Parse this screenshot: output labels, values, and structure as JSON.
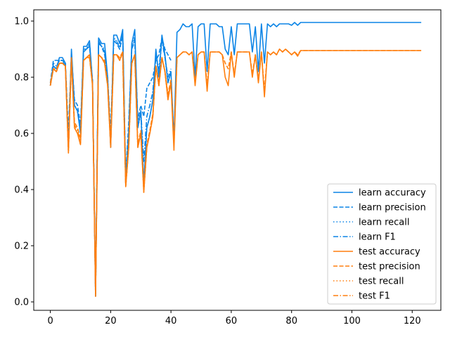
{
  "chart_data": {
    "type": "line",
    "title": "",
    "xlabel": "",
    "ylabel": "",
    "xlim": [
      -5.5,
      129.5
    ],
    "ylim": [
      -0.03,
      1.04
    ],
    "xticks": [
      0,
      20,
      40,
      60,
      80,
      100,
      120
    ],
    "yticks": [
      0.0,
      0.2,
      0.4,
      0.6,
      0.8,
      1.0
    ],
    "xtick_labels": [
      "0",
      "20",
      "40",
      "60",
      "80",
      "100",
      "120"
    ],
    "ytick_labels": [
      "0.0",
      "0.2",
      "0.4",
      "0.6",
      "0.8",
      "1.0"
    ],
    "grid": false,
    "legend_position": "lower-right",
    "colors": {
      "learn": "#1f77b4",
      "learn_bright": "#0a84e6",
      "test": "#ff7f0e"
    },
    "series": [
      {
        "name": "learn accuracy",
        "color": "#0a84e6",
        "style": "solid",
        "x": [
          0,
          1,
          2,
          3,
          4,
          5,
          6,
          7,
          8,
          9,
          10,
          11,
          12,
          13,
          14,
          15,
          16,
          17,
          18,
          19,
          20,
          21,
          22,
          23,
          24,
          25,
          26,
          27,
          28,
          29,
          30,
          31,
          32,
          33,
          34,
          35,
          36,
          37,
          38,
          39,
          40,
          41,
          42,
          43,
          44,
          45,
          46,
          47,
          48,
          49,
          50,
          51,
          52,
          53,
          54,
          55,
          56,
          57,
          58,
          59,
          60,
          61,
          62,
          63,
          64,
          65,
          66,
          67,
          68,
          69,
          70,
          71,
          72,
          73,
          74,
          75,
          76,
          77,
          78,
          79,
          80,
          81,
          82,
          83,
          85,
          90,
          95,
          100,
          110,
          120,
          123
        ],
        "y": [
          0.77,
          0.84,
          0.83,
          0.87,
          0.87,
          0.85,
          0.55,
          0.9,
          0.7,
          0.68,
          0.6,
          0.91,
          0.91,
          0.93,
          0.78,
          0.02,
          0.94,
          0.92,
          0.92,
          0.8,
          0.55,
          0.95,
          0.95,
          0.92,
          0.97,
          0.42,
          0.6,
          0.92,
          0.97,
          0.62,
          0.68,
          0.42,
          0.62,
          0.66,
          0.72,
          0.9,
          0.8,
          0.95,
          0.88,
          0.78,
          0.82,
          0.58,
          0.96,
          0.97,
          0.99,
          0.98,
          0.98,
          0.99,
          0.8,
          0.98,
          0.99,
          0.99,
          0.82,
          0.99,
          0.99,
          0.99,
          0.98,
          0.98,
          0.9,
          0.88,
          0.98,
          0.88,
          0.99,
          0.99,
          0.99,
          0.99,
          0.99,
          0.89,
          0.98,
          0.82,
          0.99,
          0.85,
          0.99,
          0.98,
          0.99,
          0.98,
          0.99,
          0.99,
          0.99,
          0.99,
          0.985,
          0.995,
          0.985,
          0.995,
          0.995,
          0.995,
          0.995,
          0.995,
          0.995,
          0.995,
          0.995
        ]
      },
      {
        "name": "learn precision",
        "color": "#0a84e6",
        "style": "dashed",
        "x": [
          0,
          1,
          2,
          3,
          4,
          5,
          6,
          7,
          8,
          9,
          10,
          11,
          12,
          13,
          14,
          15,
          16,
          17,
          18,
          19,
          20,
          21,
          22,
          23,
          24,
          25,
          26,
          27,
          28,
          29,
          30,
          31,
          32,
          33,
          34,
          35,
          36,
          37,
          38,
          39,
          40
        ],
        "y": [
          0.78,
          0.86,
          0.86,
          0.86,
          0.86,
          0.85,
          0.6,
          0.88,
          0.72,
          0.7,
          0.63,
          0.89,
          0.9,
          0.91,
          0.79,
          0.05,
          0.92,
          0.91,
          0.88,
          0.8,
          0.6,
          0.93,
          0.92,
          0.9,
          0.95,
          0.45,
          0.64,
          0.9,
          0.93,
          0.65,
          0.7,
          0.66,
          0.76,
          0.78,
          0.8,
          0.86,
          0.88,
          0.94,
          0.9,
          0.88,
          0.86
        ]
      },
      {
        "name": "learn recall",
        "color": "#0a84e6",
        "style": "dotted",
        "x": [
          0,
          1,
          2,
          3,
          4,
          5,
          6,
          7,
          8,
          9,
          10,
          11,
          12,
          13,
          14,
          15,
          16,
          17,
          18,
          19,
          20,
          21,
          22,
          23,
          24,
          25,
          26,
          27,
          28,
          29,
          30,
          31,
          32,
          33,
          34,
          35,
          36,
          37,
          38,
          39,
          40
        ],
        "y": [
          0.77,
          0.84,
          0.83,
          0.86,
          0.86,
          0.84,
          0.55,
          0.88,
          0.7,
          0.68,
          0.6,
          0.9,
          0.9,
          0.92,
          0.78,
          0.02,
          0.93,
          0.91,
          0.9,
          0.79,
          0.56,
          0.94,
          0.93,
          0.91,
          0.96,
          0.43,
          0.6,
          0.91,
          0.95,
          0.62,
          0.67,
          0.43,
          0.62,
          0.66,
          0.72,
          0.89,
          0.8,
          0.94,
          0.87,
          0.78,
          0.82
        ]
      },
      {
        "name": "learn F1",
        "color": "#0a84e6",
        "style": "dashdot",
        "x": [
          0,
          1,
          2,
          3,
          4,
          5,
          6,
          7,
          8,
          9,
          10,
          11,
          12,
          13,
          14,
          15,
          16,
          17,
          18,
          19,
          20,
          21,
          22,
          23,
          24,
          25,
          26,
          27,
          28,
          29,
          30,
          31,
          32,
          33,
          34,
          35,
          36,
          37,
          38,
          39,
          40
        ],
        "y": [
          0.77,
          0.85,
          0.84,
          0.86,
          0.86,
          0.84,
          0.56,
          0.88,
          0.7,
          0.68,
          0.61,
          0.9,
          0.9,
          0.92,
          0.78,
          0.03,
          0.93,
          0.91,
          0.89,
          0.79,
          0.57,
          0.93,
          0.93,
          0.9,
          0.95,
          0.44,
          0.61,
          0.9,
          0.94,
          0.63,
          0.68,
          0.5,
          0.66,
          0.7,
          0.75,
          0.88,
          0.83,
          0.93,
          0.87,
          0.8,
          0.83
        ]
      },
      {
        "name": "test accuracy",
        "color": "#ff7f0e",
        "style": "solid",
        "x": [
          0,
          1,
          2,
          3,
          4,
          5,
          6,
          7,
          8,
          9,
          10,
          11,
          12,
          13,
          14,
          15,
          16,
          17,
          18,
          19,
          20,
          21,
          22,
          23,
          24,
          25,
          26,
          27,
          28,
          29,
          30,
          31,
          32,
          33,
          34,
          35,
          36,
          37,
          38,
          39,
          40,
          41,
          42,
          43,
          44,
          45,
          46,
          47,
          48,
          49,
          50,
          51,
          52,
          53,
          54,
          55,
          56,
          57,
          58,
          59,
          60,
          61,
          62,
          63,
          64,
          65,
          66,
          67,
          68,
          69,
          70,
          71,
          72,
          73,
          74,
          75,
          76,
          77,
          78,
          79,
          80,
          81,
          82,
          83,
          85,
          90,
          95,
          100,
          110,
          120,
          123
        ],
        "y": [
          0.77,
          0.83,
          0.82,
          0.85,
          0.85,
          0.84,
          0.53,
          0.87,
          0.62,
          0.6,
          0.56,
          0.86,
          0.87,
          0.88,
          0.77,
          0.02,
          0.88,
          0.87,
          0.85,
          0.77,
          0.55,
          0.88,
          0.88,
          0.86,
          0.89,
          0.41,
          0.55,
          0.85,
          0.88,
          0.55,
          0.6,
          0.39,
          0.55,
          0.6,
          0.66,
          0.84,
          0.77,
          0.87,
          0.82,
          0.72,
          0.78,
          0.54,
          0.87,
          0.88,
          0.89,
          0.89,
          0.88,
          0.89,
          0.77,
          0.88,
          0.89,
          0.89,
          0.75,
          0.89,
          0.89,
          0.89,
          0.89,
          0.88,
          0.8,
          0.77,
          0.89,
          0.8,
          0.89,
          0.89,
          0.89,
          0.89,
          0.89,
          0.8,
          0.88,
          0.78,
          0.89,
          0.73,
          0.89,
          0.88,
          0.89,
          0.88,
          0.9,
          0.89,
          0.9,
          0.89,
          0.88,
          0.89,
          0.875,
          0.895,
          0.895,
          0.895,
          0.895,
          0.895,
          0.895,
          0.895,
          0.895
        ]
      },
      {
        "name": "test precision",
        "color": "#ff7f0e",
        "style": "dashed",
        "x": [
          0,
          1,
          2,
          3,
          4,
          5,
          6,
          7,
          8,
          9,
          10,
          11,
          12,
          13,
          14,
          15,
          16,
          17,
          18,
          19,
          20,
          21,
          22,
          23,
          24,
          25,
          26,
          27,
          28,
          29,
          30,
          31,
          32,
          33,
          34,
          35,
          36,
          37,
          38,
          39,
          40,
          41,
          42,
          43,
          44,
          45,
          46,
          47,
          48,
          49,
          50,
          51,
          52,
          53,
          54,
          55,
          56,
          57,
          58,
          59,
          60,
          61,
          62,
          63,
          64,
          65,
          66,
          67,
          68,
          69,
          70,
          71,
          72,
          73,
          74,
          75,
          76,
          77,
          78,
          79,
          80,
          81,
          82,
          83,
          85,
          90,
          95,
          100,
          110,
          120,
          123
        ],
        "y": [
          0.78,
          0.83,
          0.83,
          0.85,
          0.85,
          0.84,
          0.55,
          0.86,
          0.64,
          0.62,
          0.58,
          0.86,
          0.87,
          0.87,
          0.78,
          0.04,
          0.88,
          0.87,
          0.86,
          0.78,
          0.57,
          0.88,
          0.88,
          0.87,
          0.89,
          0.42,
          0.56,
          0.85,
          0.88,
          0.56,
          0.61,
          0.41,
          0.56,
          0.61,
          0.67,
          0.84,
          0.78,
          0.87,
          0.82,
          0.74,
          0.79,
          0.56,
          0.87,
          0.88,
          0.89,
          0.89,
          0.88,
          0.89,
          0.78,
          0.88,
          0.89,
          0.89,
          0.77,
          0.89,
          0.89,
          0.89,
          0.89,
          0.88,
          0.85,
          0.83,
          0.89,
          0.81,
          0.89,
          0.89,
          0.89,
          0.89,
          0.89,
          0.81,
          0.88,
          0.79,
          0.89,
          0.75,
          0.89,
          0.88,
          0.89,
          0.88,
          0.9,
          0.89,
          0.9,
          0.89,
          0.88,
          0.89,
          0.88,
          0.895,
          0.895,
          0.895,
          0.895,
          0.895,
          0.895,
          0.895,
          0.895
        ]
      },
      {
        "name": "test recall",
        "color": "#ff7f0e",
        "style": "dotted",
        "x": [
          0,
          1,
          2,
          3,
          4,
          5,
          6,
          7,
          8,
          9,
          10,
          11,
          12,
          13,
          14,
          15,
          16,
          17,
          18,
          19,
          20,
          21,
          22,
          23,
          24,
          25,
          26,
          27,
          28,
          29,
          30,
          31,
          32,
          33,
          34,
          35,
          36,
          37,
          38,
          39,
          40
        ],
        "y": [
          0.77,
          0.83,
          0.82,
          0.85,
          0.85,
          0.84,
          0.53,
          0.87,
          0.62,
          0.6,
          0.56,
          0.86,
          0.87,
          0.88,
          0.77,
          0.02,
          0.88,
          0.87,
          0.85,
          0.77,
          0.55,
          0.88,
          0.88,
          0.86,
          0.89,
          0.41,
          0.55,
          0.85,
          0.88,
          0.55,
          0.6,
          0.39,
          0.55,
          0.6,
          0.66,
          0.84,
          0.77,
          0.87,
          0.82,
          0.72,
          0.78
        ]
      },
      {
        "name": "test F1",
        "color": "#ff7f0e",
        "style": "dashdot",
        "x": [
          0,
          1,
          2,
          3,
          4,
          5,
          6,
          7,
          8,
          9,
          10,
          11,
          12,
          13,
          14,
          15,
          16,
          17,
          18,
          19,
          20,
          21,
          22,
          23,
          24,
          25,
          26,
          27,
          28,
          29,
          30,
          31,
          32,
          33,
          34,
          35,
          36,
          37,
          38,
          39,
          40
        ],
        "y": [
          0.77,
          0.83,
          0.82,
          0.85,
          0.85,
          0.84,
          0.54,
          0.86,
          0.63,
          0.61,
          0.57,
          0.86,
          0.87,
          0.87,
          0.77,
          0.03,
          0.88,
          0.87,
          0.85,
          0.77,
          0.56,
          0.88,
          0.88,
          0.86,
          0.89,
          0.41,
          0.55,
          0.85,
          0.88,
          0.55,
          0.6,
          0.4,
          0.55,
          0.6,
          0.66,
          0.84,
          0.77,
          0.87,
          0.82,
          0.73,
          0.78
        ]
      }
    ]
  }
}
